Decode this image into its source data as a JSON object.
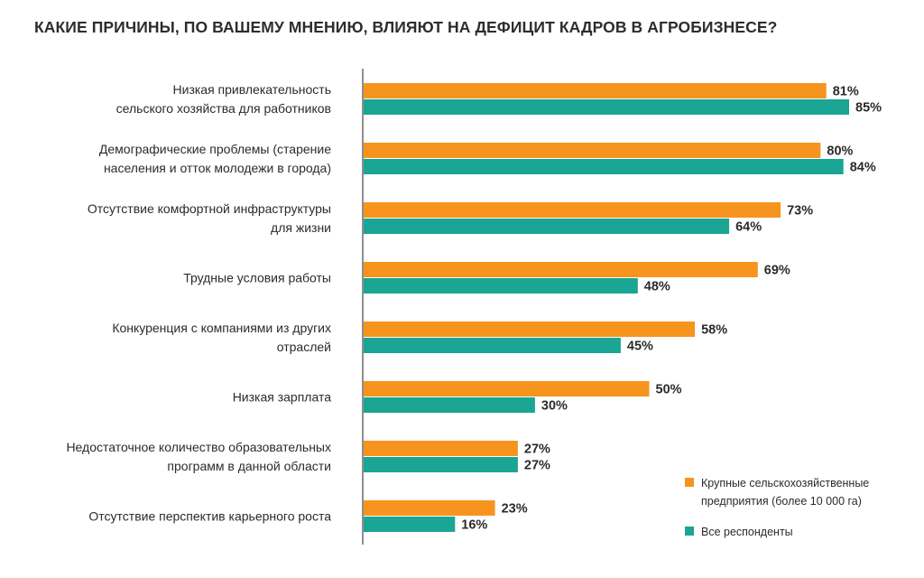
{
  "chart_data": {
    "type": "bar",
    "orientation": "horizontal",
    "title": "КАКИЕ ПРИЧИНЫ, ПО ВАШЕМУ МНЕНИЮ, ВЛИЯЮТ НА ДЕФИЦИТ КАДРОВ В АГРОБИЗНЕСЕ?",
    "categories": [
      [
        "Низкая привлекательность",
        "сельского хозяйства для работников"
      ],
      [
        "Демографические проблемы (старение",
        "населения и отток молодежи в города)"
      ],
      [
        "Отсутствие комфортной инфраструктуры",
        "для жизни"
      ],
      [
        "Трудные условия работы"
      ],
      [
        "Конкуренция с компаниями из других",
        "отраслей"
      ],
      [
        "Низкая зарплата"
      ],
      [
        "Недостаточное количество образовательных",
        "программ в данной области"
      ],
      [
        "Отсутствие перспектив карьерного роста"
      ]
    ],
    "series": [
      {
        "name": "Крупные сельскохозяйственные предприятия (более 10 000 га)",
        "legend_lines": [
          "Крупные сельскохозяйственные",
          "предприятия (более 10 000 га)"
        ],
        "color": "#f7941d",
        "values": [
          81,
          80,
          73,
          69,
          58,
          50,
          27,
          23
        ],
        "labels": [
          "81%",
          "80%",
          "73%",
          "69%",
          "58%",
          "50%",
          "27%",
          "23%"
        ]
      },
      {
        "name": "Все респонденты",
        "legend_lines": [
          "Все респонденты"
        ],
        "color": "#1aa594",
        "values": [
          85,
          84,
          64,
          48,
          45,
          30,
          27,
          16
        ],
        "labels": [
          "85%",
          "84%",
          "64%",
          "48%",
          "45%",
          "30%",
          "27%",
          "16%"
        ]
      }
    ],
    "xlim": [
      0,
      100
    ],
    "grid": false,
    "legend_position": "bottom-right"
  }
}
